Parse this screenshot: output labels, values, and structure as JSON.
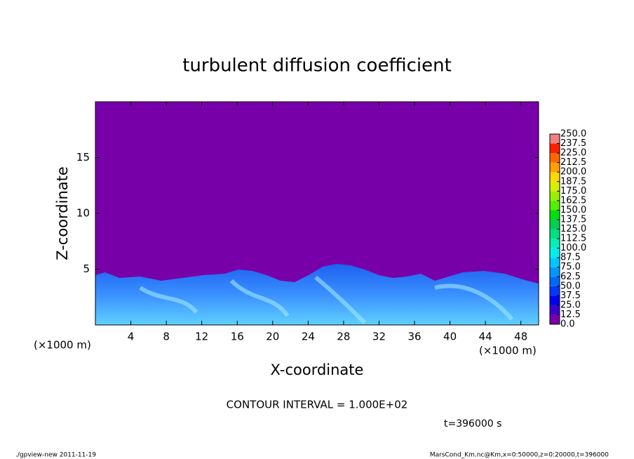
{
  "chart_data": {
    "type": "contour",
    "title": "turbulent diffusion coefficient",
    "xlabel": "X-coordinate",
    "ylabel": "Z-coordinate",
    "xunit": "(×1000 m)",
    "yunit": "(×1000 m)",
    "xlim": [
      0,
      50
    ],
    "xticks": [
      4,
      8,
      12,
      16,
      20,
      24,
      28,
      32,
      36,
      40,
      44,
      48
    ],
    "ylim": [
      0,
      20
    ],
    "yticks": [
      5,
      10,
      15
    ],
    "annotation": "CONTOUR INTERVAL = 1.000E+02",
    "time_label": "t=396000 s",
    "footer_left": "./gpview-new   2011-11-19",
    "footer_right": "MarsCond_Km.nc@Km,x=0:50000,z=0:20000,t=396000",
    "colorbar": {
      "levels": [
        {
          "value": 0,
          "label": "0.0"
        },
        {
          "value": 12.5,
          "label": "12.5"
        },
        {
          "value": 25,
          "label": "25.0"
        },
        {
          "value": 37.5,
          "label": "37.5"
        },
        {
          "value": 50,
          "label": "50.0"
        },
        {
          "value": 62.5,
          "label": "62.5"
        },
        {
          "value": 75,
          "label": "75.0"
        },
        {
          "value": 87.5,
          "label": "87.5"
        },
        {
          "value": 100,
          "label": "100.0"
        },
        {
          "value": 112.5,
          "label": "112.5"
        },
        {
          "value": 125,
          "label": "125.0"
        },
        {
          "value": 137.5,
          "label": "137.5"
        },
        {
          "value": 150,
          "label": "150.0"
        },
        {
          "value": 162.5,
          "label": "162.5"
        },
        {
          "value": 175,
          "label": "175.0"
        },
        {
          "value": 187.5,
          "label": "187.5"
        },
        {
          "value": 200,
          "label": "200.0"
        },
        {
          "value": 212.5,
          "label": "212.5"
        },
        {
          "value": 225,
          "label": "225.0"
        },
        {
          "value": 237.5,
          "label": "237.5"
        },
        {
          "value": 250,
          "label": "250.0"
        }
      ],
      "colors": [
        "#7800a8",
        "#3c00d0",
        "#0000f0",
        "#0038ff",
        "#0068ff",
        "#0098ff",
        "#00c8ff",
        "#00eef0",
        "#00f0b8",
        "#00e080",
        "#00d050",
        "#00e010",
        "#50f000",
        "#98f000",
        "#d8f000",
        "#ffd800",
        "#ffa000",
        "#ff6800",
        "#ff2000",
        "#f08080"
      ]
    }
  }
}
